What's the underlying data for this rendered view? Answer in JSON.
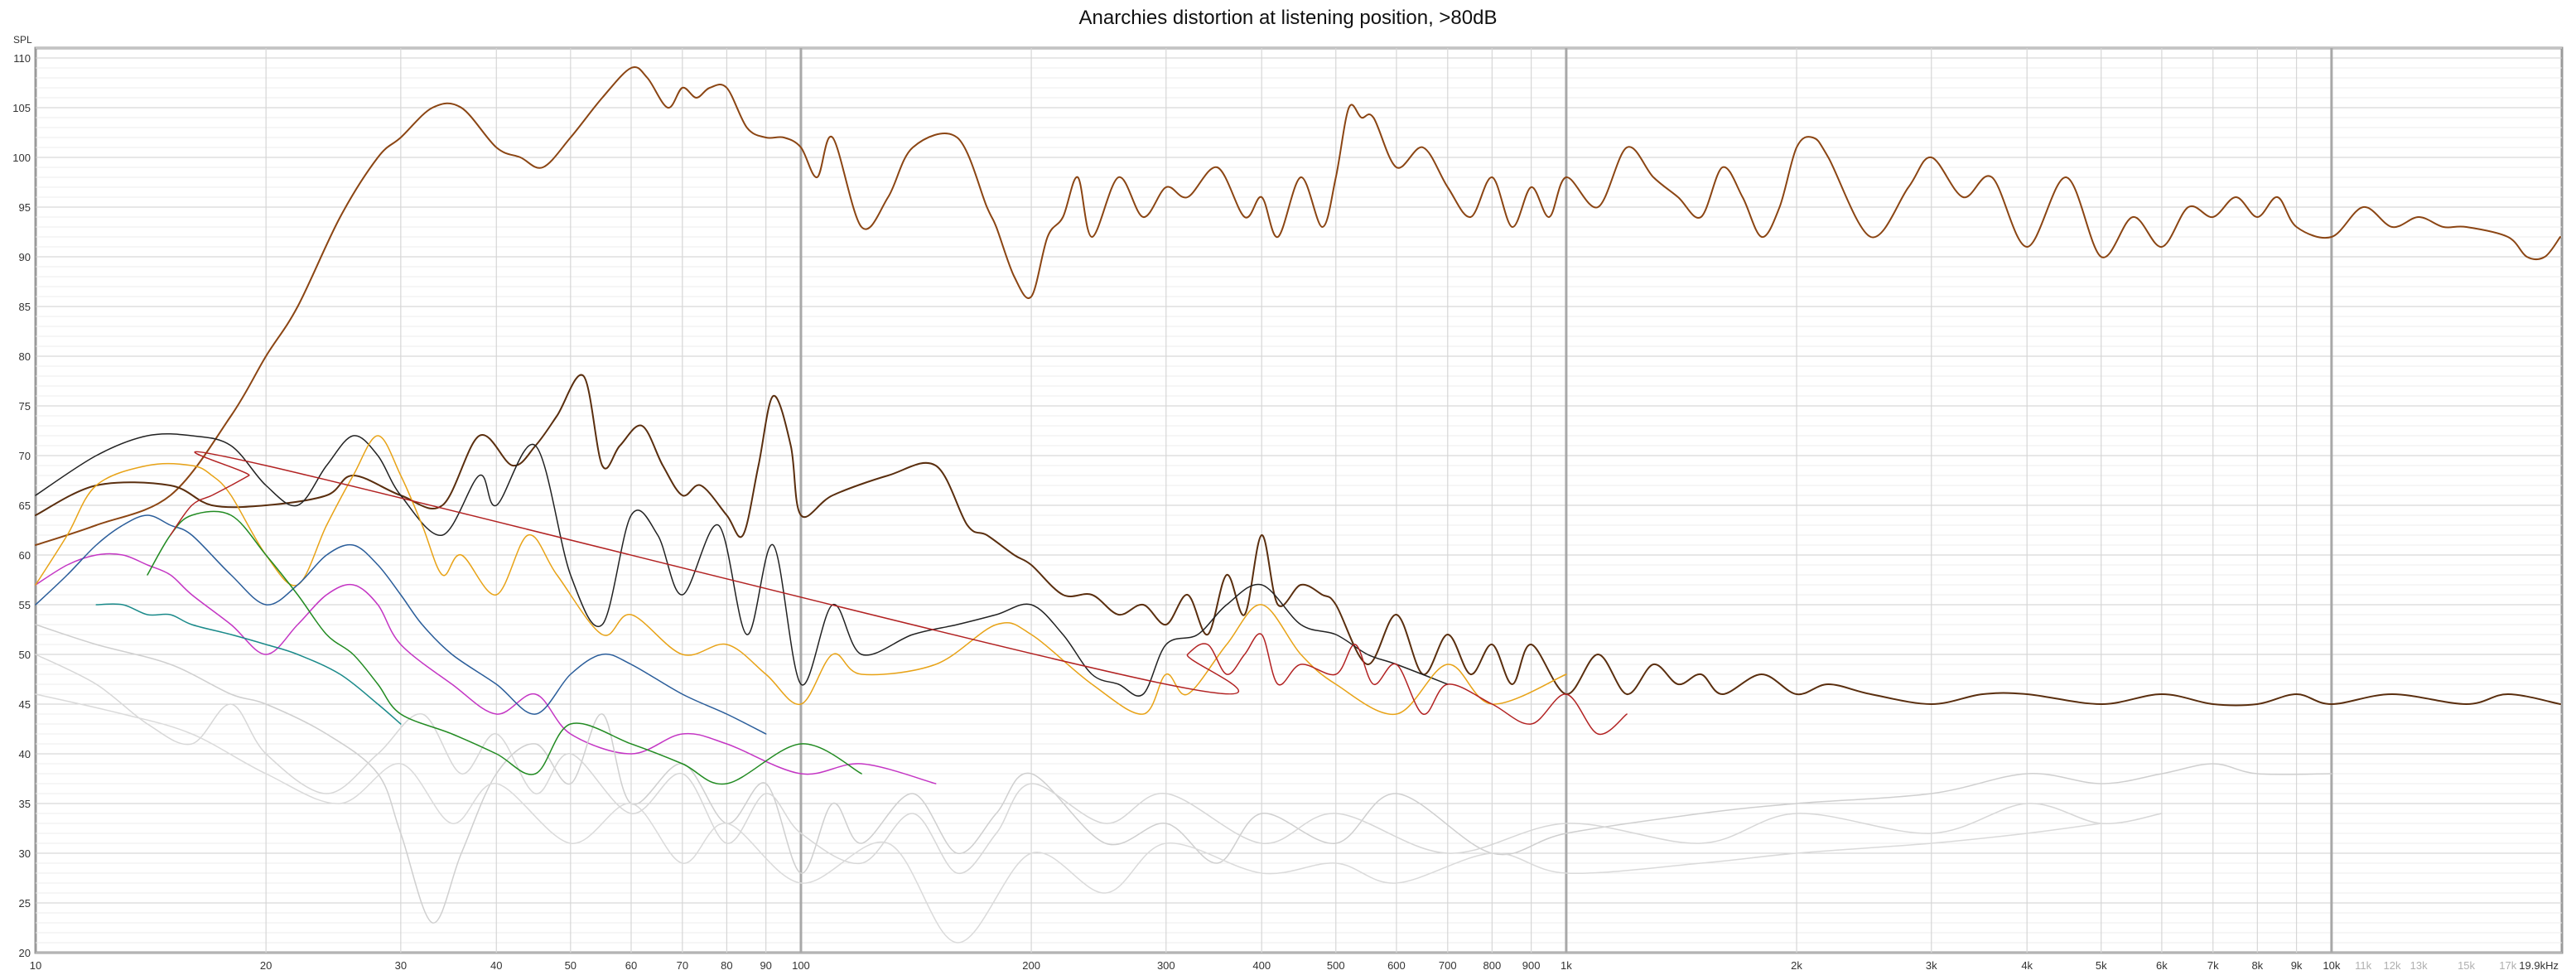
{
  "chart_data": {
    "type": "line",
    "title": "Anarchies distortion at listening position, >80dB",
    "ylabel": "SPL",
    "x_unit": "Hz",
    "x_scale": "log",
    "xlim": [
      10,
      20000
    ],
    "ylim": [
      20,
      111
    ],
    "grid": true,
    "y_ticks": [
      20,
      25,
      30,
      35,
      40,
      45,
      50,
      55,
      60,
      65,
      70,
      75,
      80,
      85,
      90,
      95,
      100,
      105,
      110
    ],
    "x_ticks": [
      {
        "v": 10,
        "l": "10"
      },
      {
        "v": 20,
        "l": "20"
      },
      {
        "v": 30,
        "l": "30"
      },
      {
        "v": 40,
        "l": "40"
      },
      {
        "v": 50,
        "l": "50"
      },
      {
        "v": 60,
        "l": "60"
      },
      {
        "v": 70,
        "l": "70"
      },
      {
        "v": 80,
        "l": "80"
      },
      {
        "v": 90,
        "l": "90"
      },
      {
        "v": 100,
        "l": "100"
      },
      {
        "v": 200,
        "l": "200"
      },
      {
        "v": 300,
        "l": "300"
      },
      {
        "v": 400,
        "l": "400"
      },
      {
        "v": 500,
        "l": "500"
      },
      {
        "v": 600,
        "l": "600"
      },
      {
        "v": 700,
        "l": "700"
      },
      {
        "v": 800,
        "l": "800"
      },
      {
        "v": 900,
        "l": "900"
      },
      {
        "v": 1000,
        "l": "1k"
      },
      {
        "v": 2000,
        "l": "2k"
      },
      {
        "v": 3000,
        "l": "3k"
      },
      {
        "v": 4000,
        "l": "4k"
      },
      {
        "v": 5000,
        "l": "5k"
      },
      {
        "v": 6000,
        "l": "6k"
      },
      {
        "v": 7000,
        "l": "7k"
      },
      {
        "v": 8000,
        "l": "8k"
      },
      {
        "v": 9000,
        "l": "9k"
      },
      {
        "v": 10000,
        "l": "10k"
      },
      {
        "v": 11000,
        "l": "11k",
        "faint": true
      },
      {
        "v": 12000,
        "l": "12k",
        "faint": true
      },
      {
        "v": 13000,
        "l": "13k",
        "faint": true
      },
      {
        "v": 15000,
        "l": "15k",
        "faint": true
      },
      {
        "v": 17000,
        "l": "17k",
        "faint": true
      },
      {
        "v": 19900,
        "l": "19.9kHz"
      }
    ],
    "series": [
      {
        "color": "#8b4513",
        "width": 2,
        "x": [
          10,
          12,
          15,
          18,
          20,
          22,
          25,
          28,
          30,
          33,
          36,
          40,
          43,
          46,
          50,
          55,
          60,
          63,
          67,
          70,
          73,
          76,
          80,
          85,
          90,
          95,
          100,
          105,
          110,
          120,
          130,
          140,
          160,
          175,
          180,
          190,
          200,
          210,
          220,
          230,
          240,
          260,
          280,
          300,
          320,
          350,
          380,
          400,
          420,
          450,
          480,
          500,
          520,
          540,
          560,
          600,
          650,
          700,
          750,
          800,
          850,
          900,
          950,
          1000,
          1100,
          1200,
          1300,
          1400,
          1500,
          1600,
          1700,
          1800,
          1900,
          2000,
          2100,
          2200,
          2500,
          2800,
          3000,
          3300,
          3600,
          4000,
          4500,
          5000,
          5500,
          6000,
          6500,
          7000,
          7500,
          8000,
          8500,
          9000,
          10000,
          11000,
          12000,
          13000,
          14000,
          15000,
          17000,
          18000,
          19000,
          19900
        ],
        "y": [
          61,
          63,
          66,
          74,
          80,
          85,
          94,
          100,
          102,
          105,
          105,
          101,
          100,
          99,
          102,
          106,
          109,
          108,
          105,
          107,
          106,
          107,
          107,
          103,
          102,
          102,
          101,
          98,
          102,
          93,
          96,
          101,
          102,
          95,
          93,
          88,
          86,
          92,
          94,
          98,
          92,
          98,
          94,
          97,
          96,
          99,
          94,
          96,
          92,
          98,
          93,
          98,
          105,
          104,
          104,
          99,
          101,
          97,
          94,
          98,
          93,
          97,
          94,
          98,
          95,
          101,
          98,
          96,
          94,
          99,
          96,
          92,
          95,
          101,
          102,
          100,
          92,
          97,
          100,
          96,
          98,
          91,
          98,
          90,
          94,
          91,
          95,
          94,
          96,
          94,
          96,
          93,
          92,
          95,
          93,
          94,
          93,
          93,
          92,
          90,
          90,
          92
        ]
      },
      {
        "color": "#5a2e0e",
        "width": 2,
        "x": [
          10,
          12,
          15,
          17,
          20,
          24,
          26,
          30,
          34,
          38,
          42,
          45,
          48,
          52,
          55,
          58,
          62,
          66,
          70,
          74,
          80,
          84,
          88,
          92,
          97,
          100,
          110,
          130,
          150,
          165,
          175,
          190,
          200,
          220,
          240,
          260,
          280,
          300,
          320,
          340,
          360,
          380,
          400,
          420,
          450,
          480,
          500,
          550,
          600,
          650,
          700,
          750,
          800,
          850,
          900,
          1000,
          1100,
          1200,
          1300,
          1400,
          1500,
          1600,
          1800,
          2000,
          2200,
          2500,
          3000,
          3500,
          4000,
          5000,
          6000,
          7000,
          8000,
          9000,
          10000,
          12000,
          15000,
          17000,
          19900
        ],
        "y": [
          64,
          67,
          67,
          65,
          65,
          66,
          68,
          66,
          65,
          72,
          69,
          71,
          74,
          78,
          69,
          71,
          73,
          69,
          66,
          67,
          64,
          62,
          69,
          76,
          71,
          64,
          66,
          68,
          69,
          63,
          62,
          60,
          59,
          56,
          56,
          54,
          55,
          53,
          56,
          52,
          58,
          54,
          62,
          55,
          57,
          56,
          55,
          49,
          54,
          48,
          52,
          48,
          51,
          47,
          51,
          46,
          50,
          46,
          49,
          47,
          48,
          46,
          48,
          46,
          47,
          46,
          45,
          46,
          46,
          45,
          46,
          45,
          45,
          46,
          45,
          46,
          45,
          46,
          45
        ]
      },
      {
        "color": "#222222",
        "width": 1.5,
        "x": [
          10,
          12,
          14,
          16,
          18,
          20,
          22,
          24,
          26,
          28,
          30,
          34,
          38,
          40,
          45,
          50,
          55,
          60,
          65,
          70,
          78,
          85,
          92,
          100,
          110,
          120,
          140,
          160,
          180,
          200,
          220,
          240,
          260,
          280,
          300,
          330,
          360,
          400,
          450,
          500,
          550,
          600,
          700
        ],
        "y": [
          66,
          70,
          72,
          72,
          71,
          67,
          65,
          69,
          72,
          70,
          66,
          62,
          68,
          65,
          71,
          58,
          53,
          64,
          62,
          56,
          63,
          52,
          61,
          47,
          55,
          50,
          52,
          53,
          54,
          55,
          52,
          48,
          47,
          46,
          51,
          52,
          55,
          57,
          53,
          52,
          50,
          49,
          47
        ]
      },
      {
        "color": "#e8a317",
        "width": 1.5,
        "x": [
          10,
          11,
          12,
          14,
          16,
          17,
          18,
          20,
          22,
          24,
          26,
          28,
          30,
          32,
          34,
          36,
          40,
          44,
          48,
          55,
          60,
          70,
          80,
          90,
          100,
          110,
          120,
          150,
          180,
          200,
          240,
          280,
          300,
          320,
          360,
          400,
          450,
          500,
          600,
          700,
          800,
          1000
        ],
        "y": [
          57,
          62,
          67,
          69,
          69,
          68,
          66,
          60,
          57,
          63,
          68,
          72,
          68,
          63,
          58,
          60,
          56,
          62,
          58,
          52,
          54,
          50,
          51,
          48,
          45,
          50,
          48,
          49,
          53,
          52,
          47,
          44,
          48,
          46,
          51,
          55,
          50,
          47,
          44,
          49,
          45,
          48
        ]
      },
      {
        "color": "#2a5d9a",
        "width": 1.5,
        "x": [
          10,
          11,
          12,
          13,
          14,
          15,
          16,
          18,
          20,
          22,
          24,
          26,
          28,
          30,
          32,
          35,
          40,
          45,
          50,
          55,
          60,
          70,
          80,
          90
        ],
        "y": [
          55,
          58,
          61,
          63,
          64,
          63,
          62,
          58,
          55,
          57,
          60,
          61,
          59,
          56,
          53,
          50,
          47,
          44,
          48,
          50,
          49,
          46,
          44,
          42
        ]
      },
      {
        "color": "#228b22",
        "width": 1.5,
        "x": [
          14,
          15,
          16,
          18,
          20,
          22,
          24,
          26,
          28,
          30,
          35,
          40,
          45,
          50,
          60,
          70,
          80,
          100,
          120
        ],
        "y": [
          58,
          62,
          64,
          64,
          60,
          56,
          52,
          50,
          47,
          44,
          42,
          40,
          38,
          43,
          41,
          39,
          37,
          41,
          38
        ]
      },
      {
        "color": "#c436c4",
        "width": 1.5,
        "x": [
          10,
          11,
          12,
          13,
          14,
          15,
          16,
          18,
          20,
          22,
          24,
          26,
          28,
          30,
          35,
          40,
          45,
          50,
          60,
          70,
          80,
          100,
          120,
          150
        ],
        "y": [
          57,
          59,
          60,
          60,
          59,
          58,
          56,
          53,
          50,
          53,
          56,
          57,
          55,
          51,
          47,
          44,
          46,
          42,
          40,
          42,
          41,
          38,
          39,
          37
        ]
      },
      {
        "color": "#1a8a8a",
        "width": 1.5,
        "x": [
          12,
          13,
          14,
          15,
          16,
          18,
          20,
          22,
          25,
          28,
          30
        ],
        "y": [
          55,
          55,
          54,
          54,
          53,
          52,
          51,
          50,
          48,
          45,
          43
        ]
      },
      {
        "color": "#b22222",
        "width": 1.5,
        "x": [
          15,
          16,
          17,
          18,
          19,
          20,
          300,
          320,
          340,
          360,
          380,
          400,
          420,
          450,
          500,
          530,
          560,
          600,
          650,
          700,
          800,
          900,
          1000,
          1100,
          1200
        ],
        "y": [
          62,
          65,
          66,
          67,
          68,
          69,
          47,
          50,
          51,
          48,
          50,
          52,
          47,
          49,
          48,
          51,
          47,
          49,
          44,
          47,
          45,
          43,
          46,
          42,
          44
        ]
      },
      {
        "color": "#cfcfcf",
        "width": 1.5,
        "x": [
          10,
          12,
          15,
          18,
          20,
          24,
          28,
          30,
          33,
          36,
          40,
          45,
          50,
          55,
          60,
          70,
          80,
          90,
          100,
          110,
          120,
          140,
          160,
          180,
          200,
          250,
          300,
          350,
          400,
          500,
          600,
          800,
          1000,
          1500,
          2000,
          3000,
          4000,
          5000,
          6000,
          7000,
          8000,
          10000
        ],
        "y": [
          53,
          51,
          49,
          46,
          45,
          42,
          38,
          32,
          23,
          30,
          38,
          41,
          37,
          44,
          35,
          39,
          33,
          37,
          28,
          35,
          31,
          36,
          30,
          34,
          38,
          31,
          33,
          29,
          34,
          31,
          36,
          30,
          32,
          34,
          35,
          36,
          38,
          37,
          38,
          39,
          38,
          38
        ]
      },
      {
        "color": "#d7d7d7",
        "width": 1.5,
        "x": [
          10,
          12,
          14,
          16,
          18,
          20,
          24,
          28,
          32,
          36,
          40,
          45,
          50,
          60,
          70,
          80,
          90,
          100,
          120,
          140,
          160,
          180,
          200,
          250,
          300,
          400,
          500,
          700,
          1000,
          1500,
          2000,
          3000,
          4000,
          5000,
          6000
        ],
        "y": [
          50,
          47,
          43,
          41,
          45,
          40,
          36,
          40,
          44,
          38,
          42,
          36,
          40,
          34,
          38,
          31,
          36,
          32,
          29,
          34,
          28,
          32,
          37,
          33,
          36,
          31,
          34,
          30,
          33,
          31,
          34,
          32,
          35,
          33,
          34
        ]
      },
      {
        "color": "#dadada",
        "width": 1.5,
        "x": [
          10,
          13,
          16,
          20,
          25,
          30,
          35,
          40,
          50,
          60,
          70,
          80,
          100,
          130,
          160,
          200,
          250,
          300,
          400,
          500,
          600,
          800,
          1000,
          1500,
          2000,
          3000,
          4000,
          5000
        ],
        "y": [
          46,
          44,
          42,
          38,
          35,
          39,
          33,
          37,
          31,
          35,
          29,
          33,
          27,
          31,
          21,
          30,
          26,
          31,
          28,
          29,
          27,
          30,
          28,
          29,
          30,
          31,
          32,
          33
        ]
      }
    ]
  }
}
